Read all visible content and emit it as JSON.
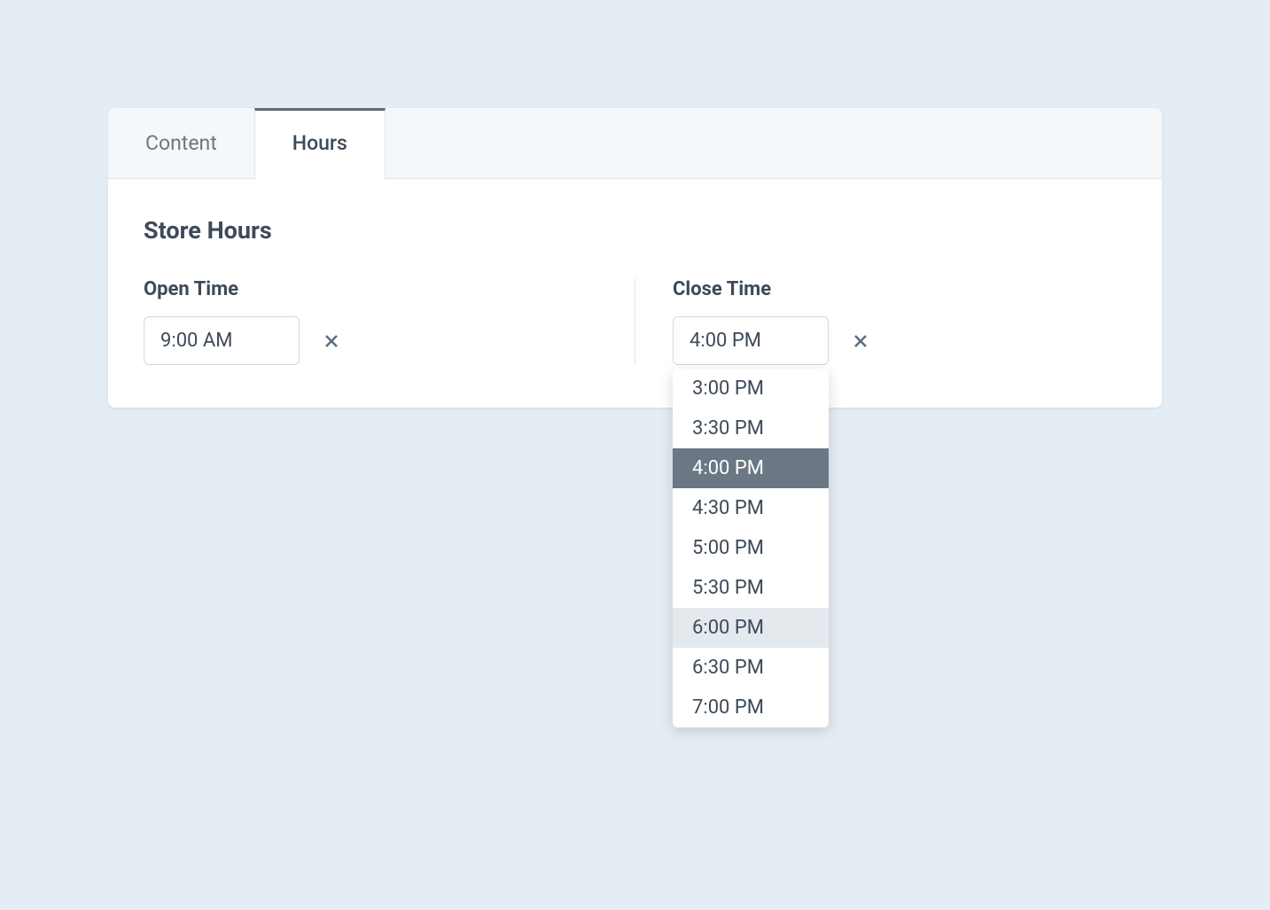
{
  "tabs": [
    {
      "label": "Content",
      "active": false
    },
    {
      "label": "Hours",
      "active": true
    }
  ],
  "section_title": "Store Hours",
  "open_time": {
    "label": "Open Time",
    "value": "9:00 AM"
  },
  "close_time": {
    "label": "Close Time",
    "value": "4:00 PM"
  },
  "dropdown": {
    "options": [
      {
        "label": "3:00 PM",
        "state": ""
      },
      {
        "label": "3:30 PM",
        "state": ""
      },
      {
        "label": "4:00 PM",
        "state": "selected"
      },
      {
        "label": "4:30 PM",
        "state": ""
      },
      {
        "label": "5:00 PM",
        "state": ""
      },
      {
        "label": "5:30 PM",
        "state": ""
      },
      {
        "label": "6:00 PM",
        "state": "hovered"
      },
      {
        "label": "6:30 PM",
        "state": ""
      },
      {
        "label": "7:00 PM",
        "state": ""
      }
    ]
  },
  "colors": {
    "page_bg": "#e4ecf4",
    "card_bg": "#ffffff",
    "tabs_bg": "#f5f8fa",
    "border": "#e0e6ec",
    "text_primary": "#3e4a59",
    "text_secondary": "#6b7785",
    "tab_indicator": "#5c6b7a",
    "input_border": "#d2d8de",
    "dropdown_selected_bg": "#6b7785",
    "dropdown_selected_fg": "#ffffff",
    "dropdown_hover_bg": "#e4e9ee"
  }
}
